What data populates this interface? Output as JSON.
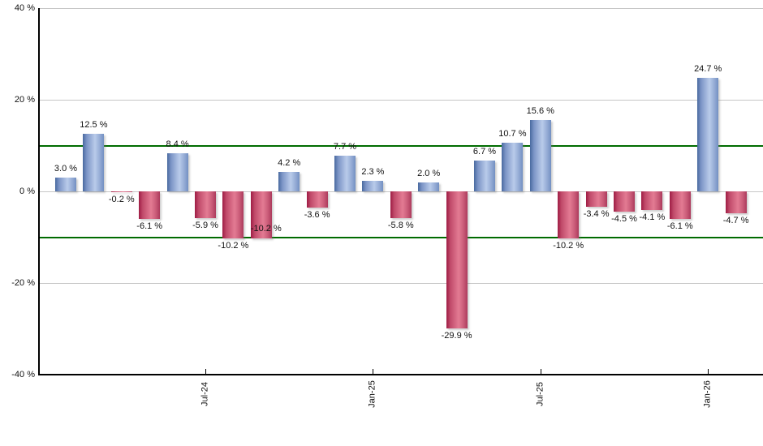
{
  "chart_data": {
    "type": "bar",
    "title": "",
    "xlabel": "",
    "ylabel": "",
    "unit": "%",
    "ylim": [
      -40,
      40
    ],
    "grid": true,
    "legend_position": "none",
    "y_ticks": [
      {
        "value": 40,
        "label": "40 %"
      },
      {
        "value": 20,
        "label": "20 %"
      },
      {
        "value": 0,
        "label": "0 %"
      },
      {
        "value": -20,
        "label": "-20 %"
      },
      {
        "value": -40,
        "label": "-40 %"
      }
    ],
    "x_ticks": [
      {
        "bar_index": 5,
        "label": "Jul-24"
      },
      {
        "bar_index": 11,
        "label": "Jan-25"
      },
      {
        "bar_index": 17,
        "label": "Jul-25"
      },
      {
        "bar_index": 23,
        "label": "Jan-26"
      }
    ],
    "threshold_lines": [
      10,
      -10
    ],
    "points": [
      {
        "value": 3.0,
        "label": "3.0 %"
      },
      {
        "value": 12.5,
        "label": "12.5 %"
      },
      {
        "value": -0.2,
        "label": "-0.2 %"
      },
      {
        "value": -6.1,
        "label": "-6.1 %"
      },
      {
        "value": 8.4,
        "label": "8.4 %"
      },
      {
        "value": -5.9,
        "label": "-5.9 %"
      },
      {
        "value": -10.2,
        "label": "-10.2 %"
      },
      {
        "value": -10.2,
        "label": "-10.2 %",
        "label_dy": -21,
        "label_dx": 6
      },
      {
        "value": 4.2,
        "label": "4.2 %"
      },
      {
        "value": -3.6,
        "label": "-3.6 %"
      },
      {
        "value": 7.7,
        "label": "7.7 %"
      },
      {
        "value": 2.3,
        "label": "2.3 %"
      },
      {
        "value": -5.8,
        "label": "-5.8 %"
      },
      {
        "value": 2.0,
        "label": "2.0 %"
      },
      {
        "value": -29.9,
        "label": "-29.9 %"
      },
      {
        "value": 6.7,
        "label": "6.7 %"
      },
      {
        "value": 10.7,
        "label": "10.7 %"
      },
      {
        "value": 15.6,
        "label": "15.6 %"
      },
      {
        "value": -10.2,
        "label": "-10.2 %"
      },
      {
        "value": -3.4,
        "label": "-3.4 %"
      },
      {
        "value": -4.5,
        "label": "-4.5 %"
      },
      {
        "value": -4.1,
        "label": "-4.1 %"
      },
      {
        "value": -6.1,
        "label": "-6.1 %"
      },
      {
        "value": 24.7,
        "label": "24.7 %"
      },
      {
        "value": -4.7,
        "label": "-4.7 %"
      }
    ],
    "colors": {
      "background": "#ffffff",
      "axis": "#000000",
      "grid": "#c6c6c6",
      "threshold": "#006b00",
      "label": "#111111",
      "positive_stops": [
        "#49699f",
        "#7b94c6",
        "#b9cbea",
        "#93aad4",
        "#7390c2"
      ],
      "negative_stops": [
        "#9e1c44",
        "#c04a6a",
        "#e37b93",
        "#c85a77",
        "#ac3a5c"
      ]
    }
  }
}
